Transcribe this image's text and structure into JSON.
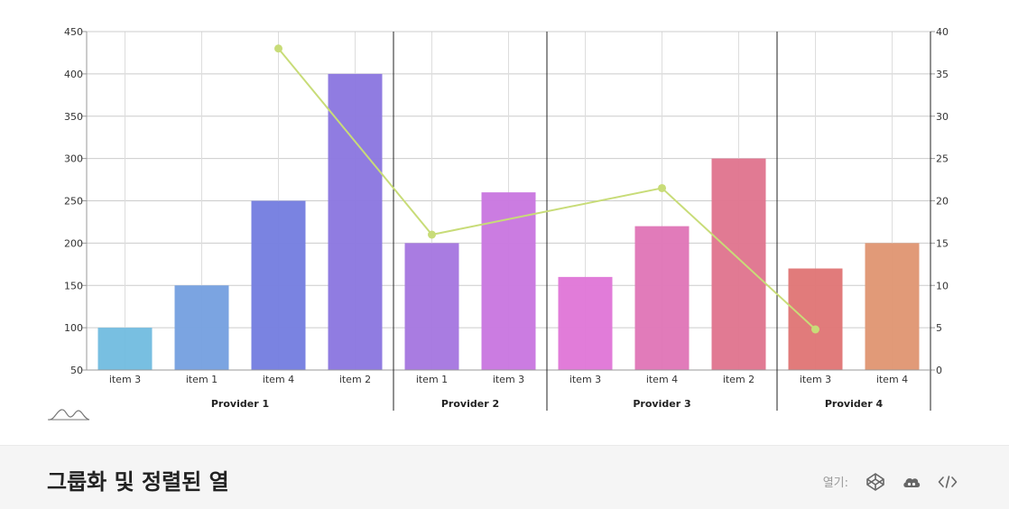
{
  "chart_data": {
    "type": "bar",
    "groups": [
      {
        "label": "Provider 1",
        "items": [
          {
            "label": "item 3",
            "value": 100,
            "color": "#74bde0"
          },
          {
            "label": "item 1",
            "value": 150,
            "color": "#77a1e0"
          },
          {
            "label": "item 4",
            "value": 250,
            "color": "#767fe0"
          },
          {
            "label": "item 2",
            "value": 400,
            "color": "#8c78e0"
          }
        ]
      },
      {
        "label": "Provider 2",
        "items": [
          {
            "label": "item 1",
            "value": 200,
            "color": "#a678e0"
          },
          {
            "label": "item 3",
            "value": 260,
            "color": "#c978e0"
          }
        ]
      },
      {
        "label": "Provider 3",
        "items": [
          {
            "label": "item 3",
            "value": 160,
            "color": "#e078d8"
          },
          {
            "label": "item 4",
            "value": 220,
            "color": "#e077b8"
          },
          {
            "label": "item 2",
            "value": 300,
            "color": "#e0768f"
          }
        ]
      },
      {
        "label": "Provider 4",
        "items": [
          {
            "label": "item 3",
            "value": 170,
            "color": "#e07777"
          },
          {
            "label": "item 4",
            "value": 200,
            "color": "#e09774"
          }
        ]
      }
    ],
    "line_series": {
      "axis": "right",
      "color": "#c8dc78",
      "points": [
        {
          "group": 0,
          "item": 2,
          "value": 38
        },
        {
          "group": 1,
          "item": 0,
          "value": 16
        },
        {
          "group": 2,
          "item": 1,
          "value": 21.5
        },
        {
          "group": 3,
          "item": 0,
          "value": 4.8
        }
      ]
    },
    "y_left": {
      "min": 50,
      "max": 450,
      "ticks": [
        50,
        100,
        150,
        200,
        250,
        300,
        350,
        400,
        450
      ]
    },
    "y_right": {
      "min": 0,
      "max": 40,
      "ticks": [
        0,
        5,
        10,
        15,
        20,
        25,
        30,
        35,
        40
      ]
    },
    "grid": true,
    "title": "",
    "xlabel": "",
    "ylabel": ""
  },
  "footer": {
    "title": "그룹화 및 정렬된 열",
    "open_label": "열기:",
    "icons": [
      "codepen-icon",
      "cloud-icon",
      "code-icon"
    ]
  }
}
